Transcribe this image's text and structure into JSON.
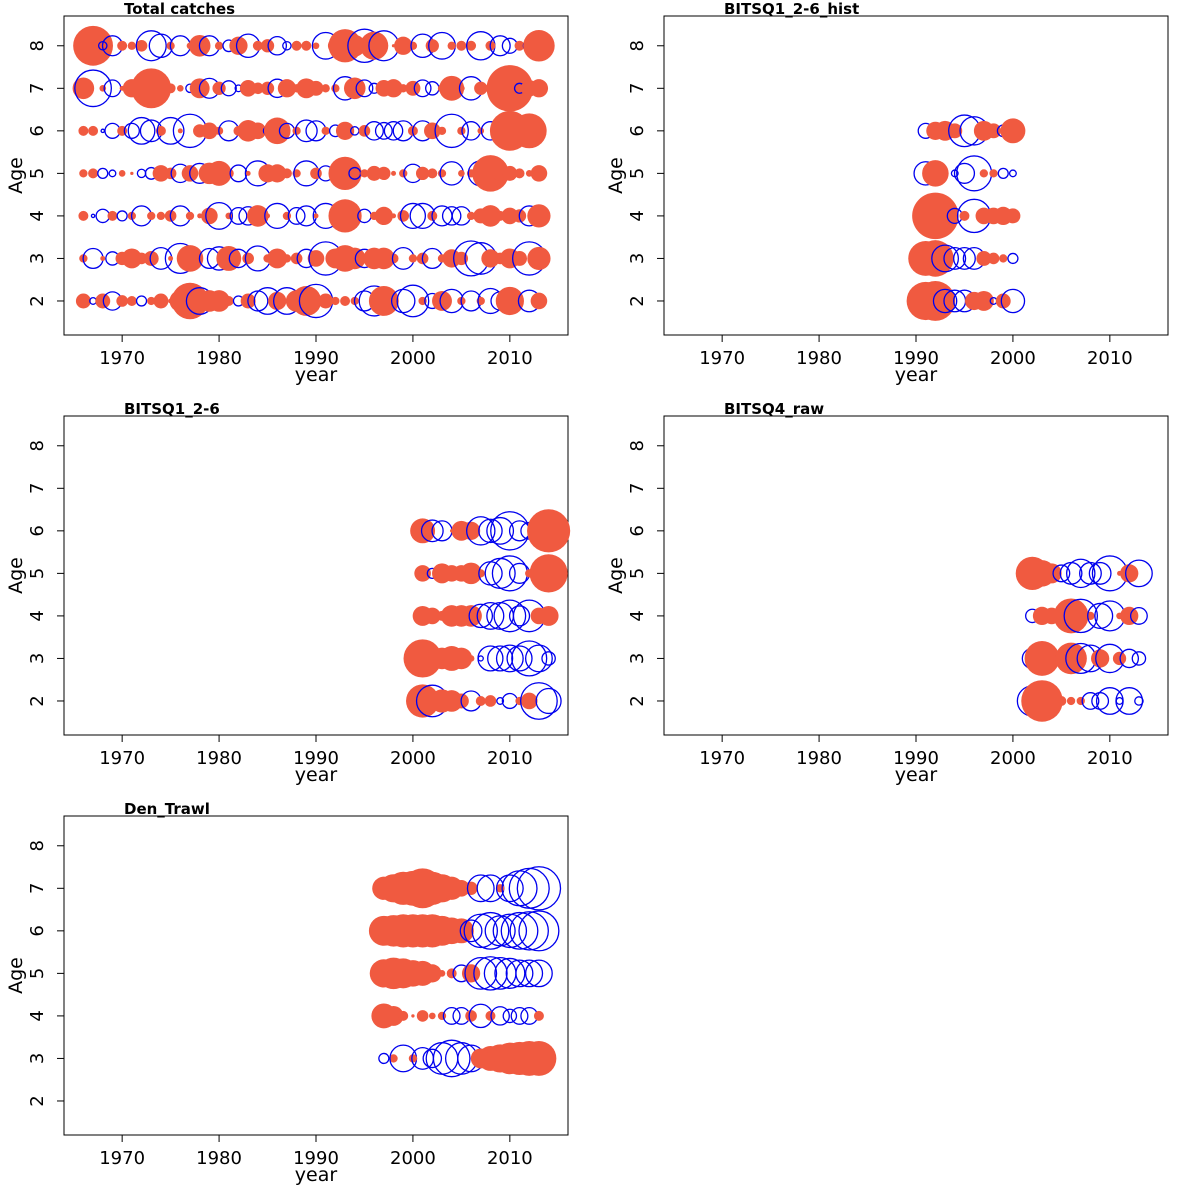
{
  "colors": {
    "positive": "#f05a40",
    "negative": "#0000ee",
    "frame": "#000000",
    "background": "#ffffff"
  },
  "chart_data": [
    {
      "type": "scatter",
      "subtype": "bubble",
      "title": "Total catches",
      "xlabel": "year",
      "ylabel": "Age",
      "xlim": [
        1964,
        2016
      ],
      "ylim": [
        1.2,
        8.7
      ],
      "xticks": [
        1970,
        1980,
        1990,
        2000,
        2010
      ],
      "yticks": [
        2,
        3,
        4,
        5,
        6,
        7,
        8
      ],
      "x": [
        1966,
        1967,
        1968,
        1969,
        1970,
        1971,
        1972,
        1973,
        1974,
        1975,
        1976,
        1977,
        1978,
        1979,
        1980,
        1981,
        1982,
        1983,
        1984,
        1985,
        1986,
        1987,
        1988,
        1989,
        1990,
        1991,
        1992,
        1993,
        1994,
        1995,
        1996,
        1997,
        1998,
        1999,
        2000,
        2001,
        2002,
        2003,
        2004,
        2005,
        2006,
        2007,
        2008,
        2009,
        2010,
        2011,
        2012,
        2013
      ],
      "residuals_by_age": {
        "2": [
          0.9,
          -0.4,
          0.9,
          -1.1,
          0.7,
          0.6,
          -0.6,
          0.5,
          0.9,
          0.3,
          1.3,
          2.2,
          -1.6,
          1.3,
          1.3,
          0.6,
          -0.6,
          0.9,
          -1.2,
          -1.6,
          1.1,
          -1.6,
          1.3,
          1.8,
          -2.0,
          0.9,
          0.5,
          0.6,
          0.5,
          -1.2,
          -1.8,
          1.8,
          0.6,
          -1.4,
          -1.9,
          0.5,
          -0.9,
          1.2,
          -1.4,
          0.5,
          -1.2,
          0.5,
          -1.5,
          -1.1,
          1.7,
          0.5,
          -1.3,
          1.0
        ],
        "3": [
          0.5,
          -1.2,
          0.3,
          -0.8,
          0.8,
          1.2,
          0.7,
          0.9,
          -1.3,
          0.3,
          -1.8,
          1.6,
          0.4,
          -1.2,
          -1.4,
          1.5,
          -1.1,
          0.7,
          -1.5,
          0.5,
          1.2,
          0.5,
          0.7,
          -1.1,
          1.0,
          -2.0,
          1.2,
          1.6,
          1.3,
          -1.1,
          1.3,
          1.3,
          0.6,
          -1.3,
          0.5,
          0.7,
          -1.2,
          0.5,
          1.1,
          0.8,
          -2.1,
          -1.9,
          1.1,
          0.7,
          1.2,
          0.9,
          -2.0,
          1.4
        ],
        "4": [
          0.6,
          -0.2,
          -0.8,
          0.6,
          -0.6,
          0.5,
          -1.2,
          0.5,
          0.5,
          0.7,
          -1.2,
          0.5,
          0.3,
          1.0,
          -1.6,
          0.4,
          -1.0,
          -1.1,
          1.3,
          0.3,
          -1.5,
          0.5,
          -1.0,
          -1.2,
          0.3,
          -1.5,
          0.6,
          2.0,
          0.3,
          -0.8,
          0.5,
          1.1,
          0.3,
          0.7,
          -1.5,
          -1.5,
          0.6,
          -1.2,
          -1.1,
          -1.1,
          0.5,
          0.9,
          1.3,
          0.6,
          1.0,
          0.8,
          -1.2,
          1.4
        ],
        "5": [
          0.5,
          0.6,
          -0.6,
          -0.4,
          0.4,
          0.2,
          -0.5,
          -0.7,
          1.0,
          0.7,
          -1.1,
          1.0,
          -1.2,
          1.3,
          1.5,
          0.6,
          -1.0,
          0.3,
          -1.5,
          1.1,
          1.1,
          0.6,
          0.5,
          -1.5,
          0.7,
          -0.9,
          0.4,
          2.0,
          -0.7,
          0.5,
          0.9,
          0.8,
          0.3,
          0.5,
          -1.1,
          0.8,
          0.6,
          0.5,
          -1.4,
          0.4,
          0.5,
          -1.5,
          2.2,
          0.9,
          0.9,
          0.6,
          0.4,
          1.0
        ],
        "6": [
          0.6,
          0.6,
          -0.2,
          -0.9,
          0.6,
          -0.9,
          -1.6,
          -1.3,
          0.6,
          -1.6,
          0.3,
          -2.0,
          0.8,
          1.0,
          0.5,
          -1.2,
          0.6,
          1.3,
          1.0,
          -0.5,
          1.6,
          -0.9,
          0.5,
          -1.3,
          -1.2,
          0.5,
          -0.7,
          1.1,
          -0.5,
          0.7,
          -1.1,
          -1.0,
          -1.1,
          -1.2,
          0.6,
          -1.2,
          1.0,
          0.5,
          -2.0,
          0.5,
          -1.1,
          0.4,
          -1.1,
          0.5,
          2.4,
          0.8,
          2.1,
          0.4
        ],
        "7": [
          1.3,
          -2.2,
          0.4,
          -1.0,
          0.3,
          1.1,
          1.2,
          2.4,
          1.0,
          0.6,
          0.4,
          -0.5,
          1.2,
          -1.2,
          0.8,
          -0.9,
          -0.4,
          1.0,
          0.7,
          0.8,
          -1.1,
          1.1,
          0.5,
          1.2,
          0.9,
          0.5,
          0.5,
          -1.4,
          1.3,
          -1.0,
          -0.6,
          1.0,
          1.1,
          0.5,
          0.9,
          -1.0,
          -0.8,
          0.5,
          1.5,
          0.4,
          -1.4,
          0.8,
          0.6,
          -1.2,
          2.8,
          -0.6,
          1.0,
          1.1
        ],
        "8": [
          -0.2,
          2.4,
          -0.5,
          -1.2,
          0.6,
          0.5,
          0.7,
          -1.8,
          -1.4,
          0.5,
          -1.2,
          0.4,
          1.3,
          -1.2,
          0.5,
          -0.7,
          1.1,
          -1.4,
          0.6,
          0.8,
          -1.1,
          -0.5,
          0.6,
          0.6,
          0.4,
          -1.6,
          0.9,
          2.0,
          1.3,
          -2.0,
          1.7,
          -1.8,
          0.2,
          1.1,
          0.5,
          -1.4,
          0.8,
          -1.6,
          0.5,
          0.6,
          0.6,
          -1.7,
          0.6,
          -1.2,
          -0.9,
          0.6,
          -0.7,
          1.9
        ]
      }
    },
    {
      "type": "scatter",
      "subtype": "bubble",
      "title": "BITSQ1_2-6_hist",
      "xlabel": "year",
      "ylabel": "Age",
      "xlim": [
        1964,
        2016
      ],
      "ylim": [
        1.2,
        8.7
      ],
      "xticks": [
        1970,
        1980,
        1990,
        2000,
        2010
      ],
      "yticks": [
        2,
        3,
        4,
        5,
        6,
        7,
        8
      ],
      "x": [
        1991,
        1992,
        1993,
        1994,
        1995,
        1996,
        1997,
        1998,
        1999,
        2000
      ],
      "residuals_by_age": {
        "2": [
          2.3,
          2.4,
          -1.4,
          -1.3,
          -1.3,
          1.1,
          1.2,
          -0.4,
          0.9,
          -1.4
        ],
        "3": [
          2.1,
          2.2,
          -1.6,
          -1.3,
          -1.3,
          -1.3,
          0.9,
          0.7,
          0.5,
          -0.6
        ],
        "4": [
          0.9,
          2.8,
          0.6,
          -0.9,
          0.6,
          -2.0,
          1.0,
          1.0,
          1.1,
          0.9
        ],
        "5": [
          -1.4,
          1.6,
          0.4,
          -0.4,
          -1.2,
          -2.1,
          0.5,
          0.5,
          -0.6,
          -0.4
        ],
        "6": [
          -0.9,
          1.1,
          1.2,
          0.9,
          -1.9,
          -1.7,
          1.2,
          0.9,
          -0.7,
          1.5
        ]
      }
    },
    {
      "type": "scatter",
      "subtype": "bubble",
      "title": "BITSQ1_2-6",
      "xlabel": "year",
      "ylabel": "Age",
      "xlim": [
        1964,
        2016
      ],
      "ylim": [
        1.2,
        8.7
      ],
      "xticks": [
        1970,
        1980,
        1990,
        2000,
        2010
      ],
      "yticks": [
        2,
        3,
        4,
        5,
        6,
        7,
        8
      ],
      "x": [
        2001,
        2002,
        2003,
        2004,
        2005,
        2006,
        2007,
        2008,
        2009,
        2010,
        2011,
        2012,
        2013,
        2014
      ],
      "residuals_by_age": {
        "2": [
          2.0,
          -1.9,
          1.4,
          1.3,
          0.9,
          -1.2,
          0.6,
          0.7,
          -0.4,
          -0.9,
          0.5,
          1.0,
          -2.2,
          -1.5
        ],
        "3": [
          2.3,
          1.2,
          1.3,
          1.5,
          1.3,
          0.4,
          -0.3,
          -1.5,
          -1.5,
          -1.6,
          -1.5,
          -2.1,
          -1.6,
          -0.8
        ],
        "4": [
          1.2,
          1.0,
          0.6,
          1.3,
          1.3,
          1.3,
          -1.4,
          -1.6,
          -1.6,
          -1.9,
          -1.2,
          -1.9,
          1.0,
          1.2
        ],
        "5": [
          1.0,
          -0.6,
          1.2,
          1.0,
          1.0,
          1.3,
          0.5,
          -1.4,
          -1.8,
          -2.1,
          -1.2,
          0.5,
          0.6,
          2.3
        ],
        "6": [
          1.5,
          -1.3,
          -1.2,
          0.2,
          1.2,
          1.1,
          -1.7,
          -1.4,
          -1.6,
          -2.3,
          -1.2,
          -1.0,
          -1.1,
          2.6
        ]
      }
    },
    {
      "type": "scatter",
      "subtype": "bubble",
      "title": "BITSQ4_raw",
      "xlabel": "year",
      "ylabel": "Age",
      "xlim": [
        1964,
        2016
      ],
      "ylim": [
        1.2,
        8.7
      ],
      "xticks": [
        1970,
        1980,
        1990,
        2000,
        2010
      ],
      "yticks": [
        2,
        3,
        4,
        5,
        6,
        7,
        8
      ],
      "x": [
        2002,
        2003,
        2004,
        2005,
        2006,
        2007,
        2008,
        2009,
        2010,
        2011,
        2012,
        2013
      ],
      "residuals_by_age": {
        "2": [
          -1.8,
          2.5,
          1.1,
          0.6,
          0.5,
          0.5,
          -1.0,
          -1.0,
          -1.6,
          -0.4,
          -1.6,
          -0.5
        ],
        "3": [
          -1.2,
          2.1,
          1.1,
          0.8,
          1.9,
          -1.8,
          -1.6,
          1.1,
          -1.7,
          0.8,
          -1.1,
          -0.8
        ],
        "4": [
          -0.8,
          1.1,
          1.0,
          0.5,
          2.1,
          -2.0,
          0.5,
          -1.5,
          -1.8,
          0.4,
          1.1,
          -1.0
        ],
        "5": [
          2.0,
          1.6,
          1.2,
          -1.0,
          -1.3,
          -1.7,
          -1.3,
          -1.3,
          -2.1,
          0.3,
          1.1,
          -1.6
        ]
      }
    },
    {
      "type": "scatter",
      "subtype": "bubble",
      "title": "Den_Trawl",
      "xlabel": "year",
      "ylabel": "Age",
      "xlim": [
        1964,
        2016
      ],
      "ylim": [
        1.2,
        8.7
      ],
      "xticks": [
        1970,
        1980,
        1990,
        2000,
        2010
      ],
      "yticks": [
        2,
        3,
        4,
        5,
        6,
        7,
        8
      ],
      "x": [
        1997,
        1998,
        1999,
        2000,
        2001,
        2002,
        2003,
        2004,
        2005,
        2006,
        2007,
        2008,
        2009,
        2010,
        2011,
        2012,
        2013
      ],
      "residuals_by_age": {
        "3": [
          -0.6,
          0.5,
          -1.6,
          0.5,
          -1.3,
          -1.1,
          -1.9,
          -2.2,
          -1.9,
          -1.6,
          1.2,
          1.5,
          1.7,
          1.9,
          2.0,
          2.1,
          2.1
        ],
        "4": [
          1.5,
          1.2,
          0.6,
          0.2,
          0.7,
          0.4,
          0.5,
          -1.0,
          -1.0,
          0.7,
          -1.4,
          0.6,
          -1.1,
          -0.8,
          -1.0,
          -1.0,
          0.6
        ],
        "5": [
          1.7,
          1.9,
          1.8,
          1.6,
          1.5,
          1.1,
          0.4,
          0.6,
          -1.0,
          1.1,
          -1.9,
          -2.0,
          -1.9,
          -1.8,
          -1.6,
          -1.6,
          -1.6
        ],
        "6": [
          1.8,
          1.9,
          2.0,
          2.0,
          2.0,
          2.0,
          1.8,
          1.6,
          1.5,
          -1.3,
          -2.0,
          -2.2,
          -1.8,
          -2.0,
          -2.2,
          -2.3,
          -2.4
        ],
        "7": [
          1.4,
          1.7,
          2.0,
          2.1,
          2.4,
          2.0,
          1.7,
          1.4,
          1.0,
          0.8,
          -1.6,
          -1.6,
          0.5,
          -1.6,
          -2.1,
          -2.4,
          -2.6
        ]
      }
    }
  ]
}
